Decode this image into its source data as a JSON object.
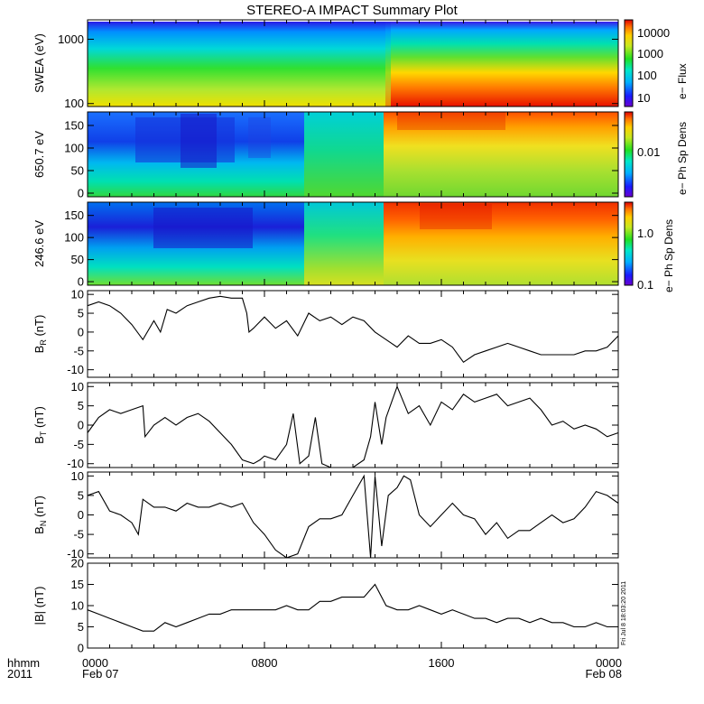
{
  "title": "STEREO-A IMPACT Summary Plot",
  "footer": {
    "hhmm": "hhmm",
    "year": "2011",
    "stamp": "Fri Jul  8 18:03:20 2011"
  },
  "colorbar_ticks": {
    "swea": [
      "10000",
      "1000",
      "100",
      "10"
    ],
    "ph": [
      "0.01"
    ],
    "ph2": [
      "1.0",
      "0.1"
    ]
  },
  "colorbar_labels": {
    "swea": "e− Flux",
    "ph1": "e− Ph Sp Dens",
    "ph2": "e− Ph Sp Dens"
  },
  "chart_data": [
    {
      "type": "heatmap",
      "ylabel": "SWEA (eV)",
      "scale": "log",
      "ylim": [
        90,
        2000
      ],
      "yticks": [
        "1000",
        "100"
      ],
      "colorbar": {
        "label": "e− Flux",
        "scale": "log",
        "range": [
          5,
          30000
        ],
        "ticks": [
          "10000",
          "1000",
          "100",
          "10"
        ]
      }
    },
    {
      "type": "heatmap",
      "ylabel": "650.7 eV",
      "ylim": [
        -8,
        180
      ],
      "yticks": [
        "150",
        "100",
        "50",
        "0"
      ],
      "colorbar": {
        "label": "e− Ph Sp Dens",
        "scale": "log",
        "ticks": [
          "0.01"
        ]
      }
    },
    {
      "type": "heatmap",
      "ylabel": "246.6 eV",
      "ylim": [
        -8,
        180
      ],
      "yticks": [
        "150",
        "100",
        "50",
        "0"
      ],
      "colorbar": {
        "label": "e− Ph Sp Dens",
        "scale": "log",
        "range": [
          0.1,
          5
        ],
        "ticks": [
          "1.0",
          "0.1"
        ]
      }
    },
    {
      "type": "line",
      "ylabel": "B_R (nT)",
      "ylabel_main": "B",
      "ylabel_sub": "R",
      "ylabel_unit": "(nT)",
      "ylim": [
        -12,
        11
      ],
      "yticks": [
        "10",
        "5",
        "0",
        "-5",
        "-10"
      ],
      "xlim": [
        0,
        24
      ],
      "x": [
        0,
        0.5,
        1,
        1.5,
        2,
        2.5,
        3,
        3.3,
        3.6,
        4,
        4.5,
        5,
        5.5,
        6,
        6.5,
        7,
        7.2,
        7.3,
        7.5,
        8,
        8.5,
        9,
        9.5,
        10,
        10.5,
        11,
        11.5,
        12,
        12.5,
        13,
        13.5,
        14,
        14.5,
        15,
        15.5,
        16,
        16.5,
        17,
        17.5,
        18,
        18.5,
        19,
        19.5,
        20,
        20.5,
        21,
        21.5,
        22,
        22.5,
        23,
        23.5,
        24
      ],
      "y": [
        7,
        8,
        7,
        5,
        2,
        -2,
        3,
        0,
        6,
        5,
        7,
        8,
        9,
        9.5,
        9,
        9,
        5,
        0,
        1,
        4,
        1,
        3,
        -1,
        5,
        3,
        4,
        2,
        4,
        3,
        0,
        -2,
        -4,
        -1,
        -3,
        -3,
        -2,
        -4,
        -8,
        -6,
        -5,
        -4,
        -3,
        -4,
        -5,
        -6,
        -6,
        -6,
        -6,
        -5,
        -5,
        -4,
        -1
      ]
    },
    {
      "type": "line",
      "ylabel": "B_T (nT)",
      "ylabel_main": "B",
      "ylabel_sub": "T",
      "ylabel_unit": "(nT)",
      "ylim": [
        -11,
        11
      ],
      "yticks": [
        "10",
        "5",
        "0",
        "-5",
        "-10"
      ],
      "xlim": [
        0,
        24
      ],
      "x": [
        0,
        0.5,
        1,
        1.5,
        2,
        2.5,
        2.6,
        3,
        3.5,
        4,
        4.5,
        5,
        5.5,
        6,
        6.5,
        7,
        7.5,
        7.8,
        8,
        8.5,
        9,
        9.3,
        9.6,
        10,
        10.3,
        10.6,
        11,
        11.5,
        12,
        12.5,
        12.8,
        13,
        13.3,
        13.5,
        14,
        14.5,
        15,
        15.5,
        16,
        16.5,
        17,
        17.5,
        18,
        18.5,
        19,
        19.5,
        20,
        20.5,
        21,
        21.5,
        22,
        22.5,
        23,
        23.5,
        24
      ],
      "y": [
        -2,
        2,
        4,
        3,
        4,
        5,
        -3,
        0,
        2,
        0,
        2,
        3,
        1,
        -2,
        -5,
        -9,
        -10,
        -9,
        -8,
        -9,
        -5,
        3,
        -10,
        -8,
        2,
        -10,
        -11,
        -11,
        -11,
        -9,
        -3,
        6,
        -5,
        2,
        10,
        3,
        5,
        0,
        6,
        4,
        8,
        6,
        7,
        8,
        5,
        6,
        7,
        4,
        0,
        1,
        -1,
        0,
        -1,
        -3,
        -2
      ]
    },
    {
      "type": "line",
      "ylabel": "B_N (nT)",
      "ylabel_main": "B",
      "ylabel_sub": "N",
      "ylabel_unit": "(nT)",
      "ylim": [
        -11,
        11
      ],
      "yticks": [
        "10",
        "5",
        "0",
        "-5",
        "-10"
      ],
      "xlim": [
        0,
        24
      ],
      "x": [
        0,
        0.5,
        1,
        1.5,
        2,
        2.3,
        2.5,
        3,
        3.5,
        4,
        4.5,
        5,
        5.5,
        6,
        6.5,
        7,
        7.5,
        8,
        8.5,
        9,
        9.5,
        10,
        10.5,
        11,
        11.5,
        12,
        12.5,
        12.8,
        13,
        13.3,
        13.6,
        14,
        14.3,
        14.6,
        15,
        15.5,
        16,
        16.5,
        17,
        17.5,
        18,
        18.5,
        19,
        19.5,
        20,
        20.5,
        21,
        21.5,
        22,
        22.5,
        23,
        23.5,
        24
      ],
      "y": [
        5,
        6,
        1,
        0,
        -2,
        -5,
        4,
        2,
        2,
        1,
        3,
        2,
        2,
        3,
        2,
        3,
        -2,
        -5,
        -9,
        -11,
        -10,
        -3,
        -1,
        -1,
        0,
        5,
        10,
        -11,
        10,
        -8,
        5,
        7,
        10,
        9,
        0,
        -3,
        0,
        3,
        0,
        -1,
        -5,
        -2,
        -6,
        -4,
        -4,
        -2,
        0,
        -2,
        -1,
        2,
        6,
        5,
        3
      ]
    },
    {
      "type": "line",
      "ylabel": "|B| (nT)",
      "ylim": [
        0,
        20
      ],
      "yticks": [
        "20",
        "15",
        "10",
        "5",
        "0"
      ],
      "xlim": [
        0,
        24
      ],
      "x": [
        0,
        0.5,
        1,
        1.5,
        2,
        2.5,
        3,
        3.5,
        4,
        4.5,
        5,
        5.5,
        6,
        6.5,
        7,
        7.5,
        8,
        8.5,
        9,
        9.5,
        10,
        10.5,
        11,
        11.5,
        12,
        12.5,
        13,
        13.5,
        14,
        14.5,
        15,
        15.5,
        16,
        16.5,
        17,
        17.5,
        18,
        18.5,
        19,
        19.5,
        20,
        20.5,
        21,
        21.5,
        22,
        22.5,
        23,
        23.5,
        24
      ],
      "y": [
        9,
        8,
        7,
        6,
        5,
        4,
        4,
        6,
        5,
        6,
        7,
        8,
        8,
        9,
        9,
        9,
        9,
        9,
        10,
        9,
        9,
        11,
        11,
        12,
        12,
        12,
        15,
        10,
        9,
        9,
        10,
        9,
        8,
        9,
        8,
        7,
        7,
        6,
        7,
        7,
        6,
        7,
        6,
        6,
        5,
        5,
        6,
        5,
        5
      ]
    }
  ],
  "x_axis": {
    "ticks": [
      {
        "label": "0000",
        "date": "Feb 07"
      },
      {
        "label": "0800",
        "date": ""
      },
      {
        "label": "1600",
        "date": ""
      },
      {
        "label": "0000",
        "date": "Feb 08"
      }
    ]
  }
}
